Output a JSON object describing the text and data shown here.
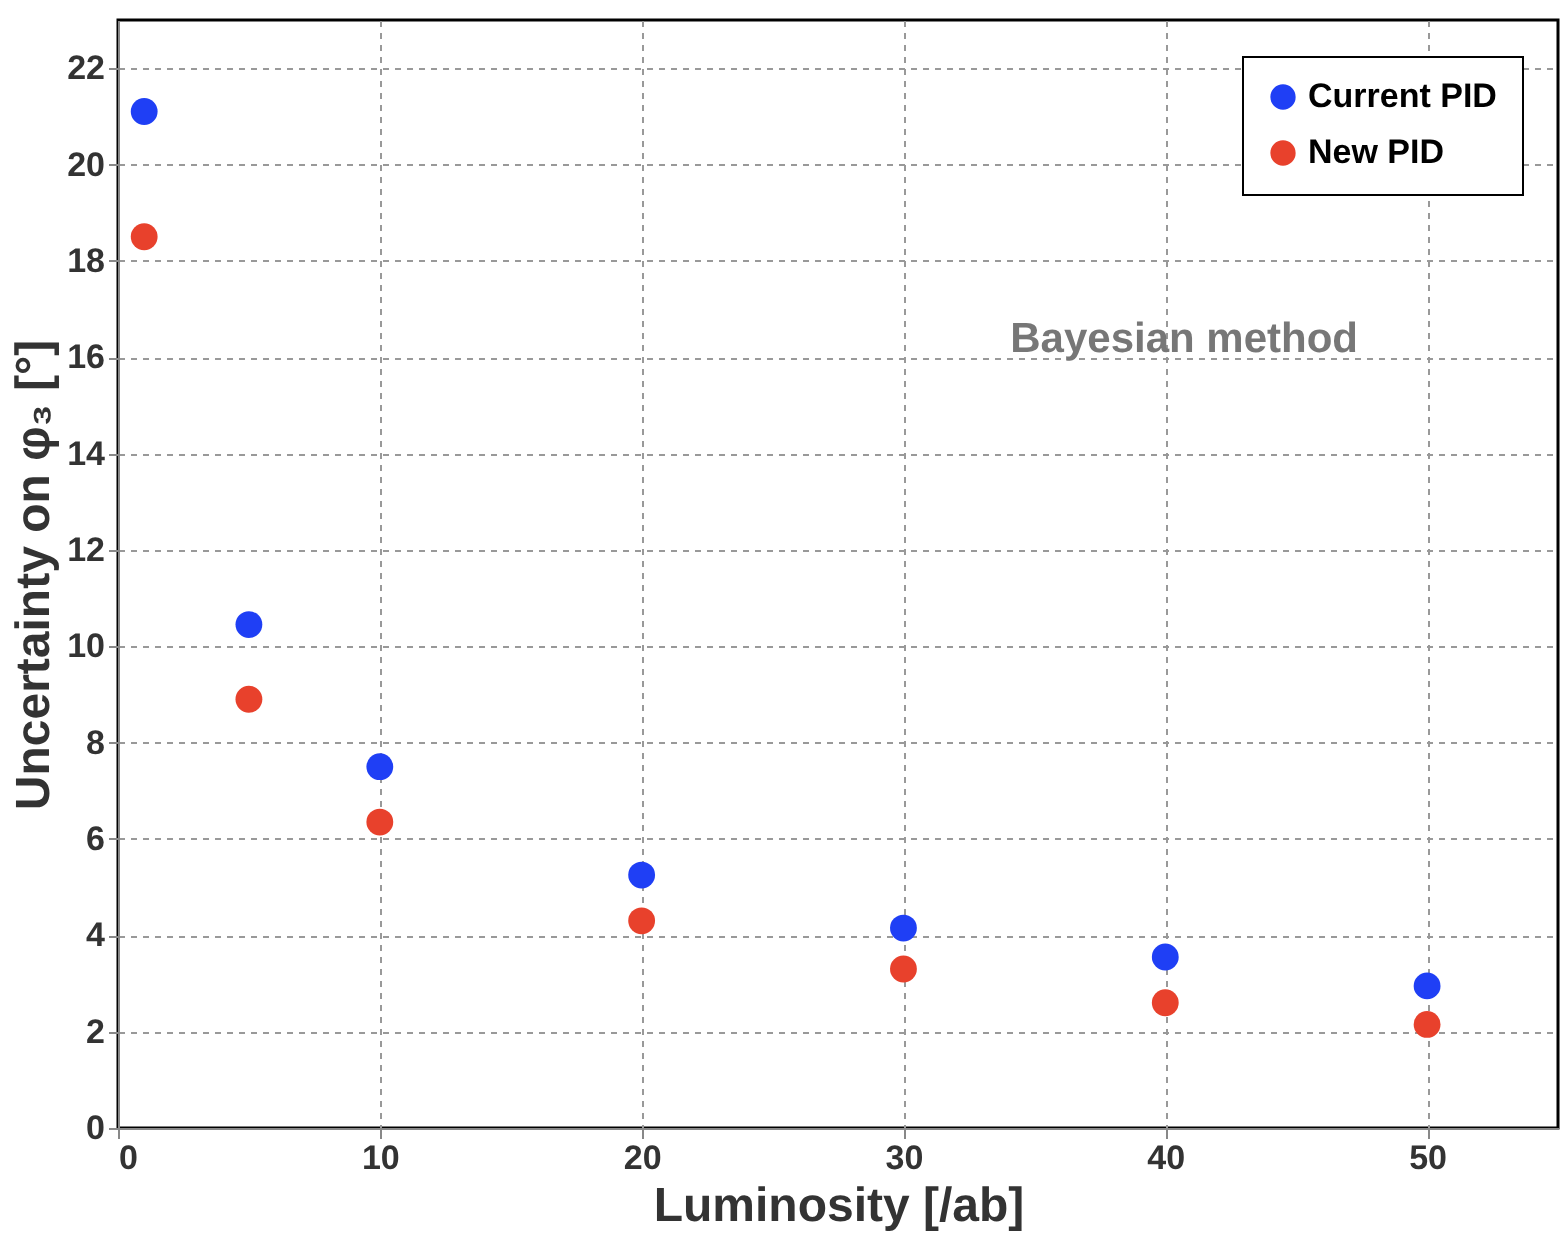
{
  "chart_data": {
    "type": "scatter",
    "xlabel": "Luminosity [/ab]",
    "ylabel": "Uncertainty on φ₃ [°]",
    "x": [
      1,
      5,
      10,
      20,
      30,
      40,
      50
    ],
    "series": [
      {
        "name": "Current PID",
        "color": "#1f3ff5",
        "values": [
          21.1,
          10.45,
          7.5,
          5.25,
          4.15,
          3.55,
          2.95
        ]
      },
      {
        "name": "New PID",
        "color": "#e8412c",
        "values": [
          18.5,
          8.9,
          6.35,
          4.3,
          3.3,
          2.6,
          2.15
        ]
      }
    ],
    "xlim": [
      0,
      55
    ],
    "ylim": [
      0,
      23
    ],
    "xticks": [
      0,
      10,
      20,
      30,
      40,
      50
    ],
    "yticks": [
      0,
      2,
      4,
      6,
      8,
      10,
      12,
      14,
      16,
      18,
      20,
      22
    ],
    "annotations": [
      "Bayesian method"
    ],
    "grid": true,
    "legend": "top right",
    "marker": "circle"
  }
}
